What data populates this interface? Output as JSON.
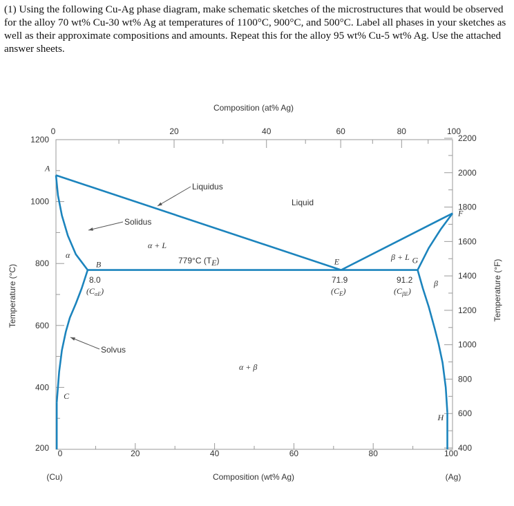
{
  "question": {
    "text": "(1) Using the following Cu-Ag phase diagram, make schematic sketches of the microstructures that would be observed for the alloy 70 wt% Cu-30 wt% Ag at temperatures of 1100°C, 900°C, and 500°C. Label all phases in your sketches as well as their approximate compositions and amounts. Repeat this for the alloy 95 wt% Cu-5 wt% Ag.  Use the attached answer sheets."
  },
  "chart_data": {
    "type": "line",
    "title": "",
    "top_axis": {
      "label": "Composition (at% Ag)",
      "ticks": [
        "0",
        "20",
        "40",
        "60",
        "80",
        "100"
      ]
    },
    "bottom_axis": {
      "label": "Composition (wt% Ag)",
      "ticks": [
        "0",
        "20",
        "40",
        "60",
        "80",
        "100"
      ],
      "xlim": [
        0,
        100
      ],
      "end_labels": [
        "(Cu)",
        "(Ag)"
      ]
    },
    "left_axis": {
      "label": "Temperature (°C)",
      "ticks": [
        "200",
        "400",
        "600",
        "800",
        "1000",
        "1200"
      ],
      "ylim": [
        200,
        1200
      ]
    },
    "right_axis": {
      "label": "Temperature (°F)",
      "ticks": [
        "400",
        "600",
        "800",
        "1000",
        "1200",
        "1400",
        "1600",
        "1800",
        "2000",
        "2200"
      ]
    },
    "grid": false,
    "series": [
      {
        "role": "liquidus",
        "x": [
          0,
          71.9
        ],
        "y": [
          1085,
          779
        ]
      },
      {
        "role": "liquidus",
        "x": [
          71.9,
          100
        ],
        "y": [
          779,
          962
        ]
      },
      {
        "role": "solidus",
        "x": [
          0,
          0.5,
          1.5,
          3,
          5,
          8.0
        ],
        "y": [
          1085,
          1020,
          955,
          890,
          830,
          779
        ]
      },
      {
        "role": "solidus",
        "x": [
          91.2,
          94,
          97,
          100
        ],
        "y": [
          779,
          850,
          910,
          962
        ]
      },
      {
        "role": "solvus",
        "x": [
          8.0,
          6.5,
          5,
          3.5,
          2.5,
          1.5,
          0.8,
          0.2
        ],
        "y": [
          779,
          720,
          670,
          625,
          580,
          520,
          450,
          350
        ]
      },
      {
        "role": "solvus",
        "x": [
          91.2,
          92.5,
          94,
          95.5,
          96.5,
          97.5,
          98.3,
          98.7
        ],
        "y": [
          779,
          720,
          660,
          590,
          540,
          480,
          400,
          320
        ]
      },
      {
        "role": "eutectic",
        "x": [
          8.0,
          91.2
        ],
        "y": [
          779,
          779
        ]
      }
    ],
    "points": {
      "A": {
        "x": 0,
        "y": 1085
      },
      "B": {
        "x": 8.0,
        "y": 779
      },
      "C": {
        "x": 0.2,
        "y": 350
      },
      "E": {
        "x": 71.9,
        "y": 779
      },
      "F": {
        "x": 100,
        "y": 962
      },
      "G": {
        "x": 91.2,
        "y": 779
      },
      "H": {
        "x": 98.7,
        "y": 320
      }
    },
    "annotations": {
      "liquidus": "Liquidus",
      "liquid": "Liquid",
      "solidus": "Solidus",
      "solvus": "Solvus",
      "alpha_plus_L": "α + L",
      "alpha": "α",
      "beta_plus_L": "β + L",
      "beta": "β",
      "alpha_plus_beta": "α + β",
      "eutectic_temp": "779°C (T",
      "eutectic_temp_sub": "E",
      "eutectic_temp_end": ")",
      "c_alpha_e_val": "8.0",
      "c_alpha_e": "(C",
      "c_alpha_e_sub": "αE",
      "c_e_val": "71.9",
      "c_e": "(C",
      "c_e_sub": "E",
      "c_beta_e_val": "91.2",
      "c_beta_e": "(C",
      "c_beta_e_sub": "βE"
    },
    "line_color": "#1c84bd"
  }
}
